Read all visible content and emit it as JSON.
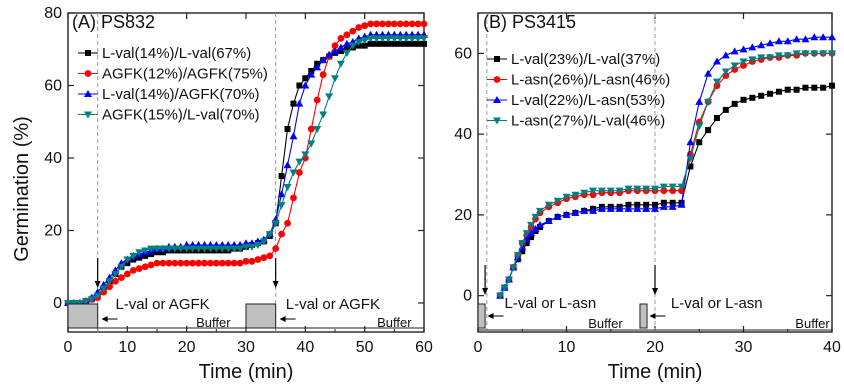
{
  "figure": {
    "ylabel": "Germination (%)"
  },
  "chart_data": [
    {
      "type": "line",
      "panel_label": "(A) PS832",
      "xlabel": "Time (min)",
      "ylabel": "Germination (%)",
      "xlim": [
        0,
        60
      ],
      "ylim": [
        -8,
        80
      ],
      "xticks": [
        0,
        10,
        20,
        30,
        40,
        50,
        60
      ],
      "yticks": [
        0,
        20,
        40,
        60,
        80
      ],
      "legend_position": "top-left",
      "addition_times": [
        5,
        35
      ],
      "annotations": [
        "L-val or AGFK",
        "L-val or AGFK",
        "Buffer",
        "Buffer"
      ],
      "series": [
        {
          "name": "L-val(14%)/L-val(67%)",
          "color": "#000000",
          "marker": "square",
          "x": [
            0,
            1,
            2,
            3,
            4,
            5,
            6,
            7,
            8,
            9,
            10,
            11,
            12,
            13,
            14,
            15,
            16,
            17,
            18,
            19,
            20,
            21,
            22,
            23,
            24,
            25,
            26,
            27,
            28,
            29,
            30,
            31,
            32,
            33,
            34,
            35,
            36,
            37,
            38,
            39,
            40,
            41,
            42,
            43,
            44,
            45,
            46,
            47,
            48,
            49,
            50,
            51,
            52,
            53,
            54,
            55,
            56,
            57,
            58,
            59,
            60
          ],
          "y": [
            0,
            0,
            0,
            0.5,
            1,
            2,
            4,
            6,
            8,
            10,
            11,
            12,
            12.5,
            13,
            13.5,
            14,
            14,
            14.5,
            14.5,
            14.5,
            14.5,
            14.5,
            14.5,
            14.5,
            14.5,
            14.5,
            14.5,
            14.5,
            15,
            15,
            15.5,
            16,
            16.5,
            17,
            18.5,
            22,
            35,
            48,
            55,
            60,
            62,
            64,
            66,
            67,
            68,
            69,
            69.5,
            70,
            70.5,
            71,
            71,
            71.5,
            71.5,
            71.5,
            71.5,
            71.5,
            71.5,
            71.5,
            71.5,
            71.5,
            71.5
          ]
        },
        {
          "name": "AGFK(12%)/AGFK(75%)",
          "color": "#ff0000",
          "marker": "circle",
          "x": [
            0,
            1,
            2,
            3,
            4,
            5,
            6,
            7,
            8,
            9,
            10,
            11,
            12,
            13,
            14,
            15,
            16,
            17,
            18,
            19,
            20,
            21,
            22,
            23,
            24,
            25,
            26,
            27,
            28,
            29,
            30,
            31,
            32,
            33,
            34,
            35,
            36,
            37,
            38,
            39,
            40,
            41,
            42,
            43,
            44,
            45,
            46,
            47,
            48,
            49,
            50,
            51,
            52,
            53,
            54,
            55,
            56,
            57,
            58,
            59,
            60
          ],
          "y": [
            0,
            0,
            0,
            0.5,
            1,
            1.5,
            3,
            4.5,
            6,
            7,
            8,
            9,
            9.5,
            10,
            10.5,
            11,
            11,
            11,
            11,
            11,
            11,
            11,
            11,
            11,
            11,
            11,
            11,
            11,
            11,
            11,
            11.5,
            11.5,
            12,
            12.5,
            13,
            15,
            19,
            22,
            29,
            36,
            40,
            48,
            56,
            63,
            68,
            71,
            73,
            74,
            75,
            76,
            76.5,
            77,
            77,
            77,
            77,
            77,
            77,
            77,
            77,
            77,
            77
          ]
        },
        {
          "name": "L-val(14%)/AGFK(70%)",
          "color": "#0000ff",
          "marker": "triangle-up",
          "x": [
            0,
            1,
            2,
            3,
            4,
            5,
            6,
            7,
            8,
            9,
            10,
            11,
            12,
            13,
            14,
            15,
            16,
            17,
            18,
            19,
            20,
            21,
            22,
            23,
            24,
            25,
            26,
            27,
            28,
            29,
            30,
            31,
            32,
            33,
            34,
            35,
            36,
            37,
            38,
            39,
            40,
            41,
            42,
            43,
            44,
            45,
            46,
            47,
            48,
            49,
            50,
            51,
            52,
            53,
            54,
            55,
            56,
            57,
            58,
            59,
            60
          ],
          "y": [
            0,
            0,
            0,
            0.5,
            1.5,
            3,
            5,
            7,
            9,
            11,
            12,
            13,
            13.5,
            14,
            14.5,
            15,
            15,
            15.5,
            15.5,
            15.5,
            16,
            16,
            16,
            16,
            16,
            16,
            16,
            16,
            16,
            16,
            16.5,
            16.5,
            17,
            17.5,
            19,
            23,
            30,
            38,
            46,
            55,
            60,
            63,
            65,
            67,
            68.5,
            69.5,
            70.5,
            71.5,
            72,
            73,
            73.5,
            74,
            74,
            74,
            74,
            74,
            74,
            74,
            74,
            74,
            74
          ]
        },
        {
          "name": "AGFK(15%)/L-val(70%)",
          "color": "#008080",
          "marker": "triangle-down",
          "x": [
            0,
            1,
            2,
            3,
            4,
            5,
            6,
            7,
            8,
            9,
            10,
            11,
            12,
            13,
            14,
            15,
            16,
            17,
            18,
            19,
            20,
            21,
            22,
            23,
            24,
            25,
            26,
            27,
            28,
            29,
            30,
            31,
            32,
            33,
            34,
            35,
            36,
            37,
            38,
            39,
            40,
            41,
            42,
            43,
            44,
            45,
            46,
            47,
            48,
            49,
            50,
            51,
            52,
            53,
            54,
            55,
            56,
            57,
            58,
            59,
            60
          ],
          "y": [
            0,
            0,
            0,
            0.5,
            1,
            2,
            4,
            6,
            8,
            10,
            12,
            13,
            14,
            14.5,
            15,
            15,
            15,
            15,
            15,
            15,
            15,
            15,
            15,
            15,
            15,
            15,
            15,
            15,
            15,
            15,
            15.5,
            15.5,
            16,
            17,
            19,
            22,
            27,
            32,
            36,
            39,
            41,
            44,
            48,
            52,
            57,
            62,
            66,
            69,
            71,
            72,
            72.5,
            73,
            73,
            73,
            73,
            73,
            73,
            73,
            73,
            73,
            73
          ]
        }
      ]
    },
    {
      "type": "line",
      "panel_label": "(B) PS3415",
      "xlabel": "Time (min)",
      "ylabel": "",
      "xlim": [
        0,
        40
      ],
      "ylim": [
        -9,
        70
      ],
      "xticks": [
        0,
        10,
        20,
        30,
        40
      ],
      "yticks": [
        0,
        20,
        40,
        60
      ],
      "legend_position": "top-left",
      "addition_times": [
        1,
        20
      ],
      "annotations": [
        "L-val or L-asn",
        "L-val or L-asn",
        "Buffer",
        "Buffer"
      ],
      "series": [
        {
          "name": "L-val(23%)/L-val(37%)",
          "color": "#000000",
          "marker": "square",
          "x": [
            2.5,
            3,
            3.5,
            4,
            4.5,
            5,
            5.5,
            6,
            6.5,
            7,
            8,
            9,
            10,
            11,
            12,
            13,
            14,
            15,
            16,
            17,
            18,
            19,
            20,
            21,
            22,
            23,
            24,
            25,
            26,
            27,
            28,
            29,
            30,
            31,
            32,
            33,
            34,
            35,
            36,
            37,
            38,
            39,
            40
          ],
          "y": [
            0,
            2,
            4,
            7,
            9,
            11,
            13,
            14.5,
            16,
            17,
            18.5,
            19.5,
            20,
            20.5,
            21,
            21.5,
            22,
            22,
            22,
            22.5,
            22.5,
            22.5,
            22.5,
            23,
            23,
            23,
            32,
            38,
            41,
            44,
            46,
            47.5,
            48.5,
            49,
            49.5,
            50,
            50.5,
            51,
            51,
            51.5,
            51.5,
            51.5,
            52
          ]
        },
        {
          "name": "L-asn(26%)/L-asn(46%)",
          "color": "#ff0000",
          "marker": "circle",
          "x": [
            2.5,
            3,
            3.5,
            4,
            4.5,
            5,
            5.5,
            6,
            6.5,
            7,
            8,
            9,
            10,
            11,
            12,
            13,
            14,
            15,
            16,
            17,
            18,
            19,
            20,
            21,
            22,
            23,
            24,
            25,
            26,
            27,
            28,
            29,
            30,
            31,
            32,
            33,
            34,
            35,
            36,
            37,
            38,
            39,
            40
          ],
          "y": [
            0,
            2,
            4,
            7,
            10,
            13,
            15,
            17,
            19,
            20.5,
            22,
            23,
            24,
            24.5,
            25,
            25,
            25.5,
            25.5,
            25.5,
            26,
            26,
            26,
            26,
            26,
            26,
            26,
            35,
            43,
            48,
            52,
            54.5,
            56,
            57,
            58,
            58.5,
            59,
            59,
            59.5,
            59.5,
            60,
            60,
            60,
            60
          ]
        },
        {
          "name": "L-val(22%)/L-asn(53%)",
          "color": "#0000ff",
          "marker": "triangle-up",
          "x": [
            2.5,
            3,
            3.5,
            4,
            4.5,
            5,
            5.5,
            6,
            6.5,
            7,
            8,
            9,
            10,
            11,
            12,
            13,
            14,
            15,
            16,
            17,
            18,
            19,
            20,
            21,
            22,
            23,
            24,
            25,
            26,
            27,
            28,
            29,
            30,
            31,
            32,
            33,
            34,
            35,
            36,
            37,
            38,
            39,
            40
          ],
          "y": [
            0,
            2,
            4,
            7,
            9.5,
            12,
            14,
            15.5,
            16.5,
            17.5,
            18.5,
            19.5,
            20,
            20.5,
            21,
            21,
            21.5,
            21.5,
            21.5,
            21.5,
            21.5,
            21.5,
            21.5,
            22,
            22,
            22.5,
            38,
            48,
            55,
            58,
            59.5,
            60.5,
            61,
            61.5,
            62,
            62.5,
            63,
            63,
            63.5,
            63.5,
            64,
            64,
            64
          ]
        },
        {
          "name": "L-asn(27%)/L-val(46%)",
          "color": "#008080",
          "marker": "triangle-down",
          "x": [
            2.5,
            3,
            3.5,
            4,
            4.5,
            5,
            5.5,
            6,
            6.5,
            7,
            8,
            9,
            10,
            11,
            12,
            13,
            14,
            15,
            16,
            17,
            18,
            19,
            20,
            21,
            22,
            23,
            24,
            25,
            26,
            27,
            28,
            29,
            30,
            31,
            32,
            33,
            34,
            35,
            36,
            37,
            38,
            39,
            40
          ],
          "y": [
            0,
            2,
            4,
            7,
            10,
            13,
            15.5,
            17.5,
            19.5,
            21,
            22.5,
            23.5,
            24.5,
            25,
            25.5,
            26,
            26,
            26,
            26,
            26.5,
            26.5,
            26.5,
            26.5,
            27,
            27,
            27,
            34,
            42,
            48,
            53,
            55.5,
            57,
            58,
            58.5,
            59,
            59,
            59.5,
            59.5,
            60,
            60,
            60,
            60,
            60
          ]
        }
      ]
    }
  ]
}
